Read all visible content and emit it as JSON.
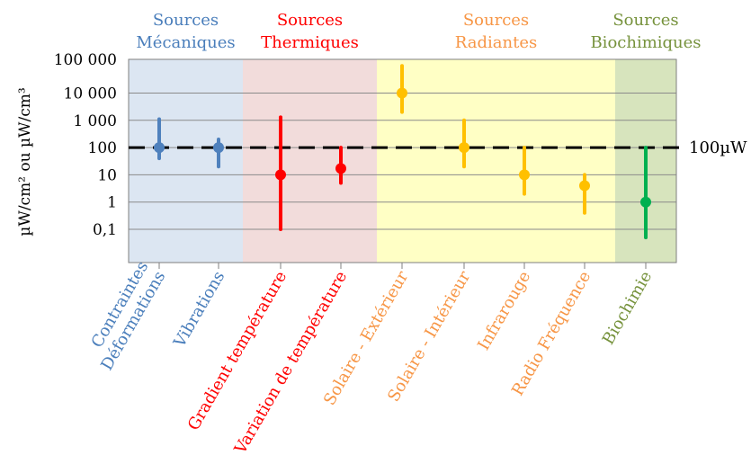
{
  "chart_data": {
    "type": "scatter",
    "ylabel": "µW/cm² ou µW/cm³",
    "yscale": "log",
    "ylim": [
      0.05,
      100000
    ],
    "y_ticks": [
      0.1,
      1,
      10,
      100,
      1000,
      10000,
      100000
    ],
    "y_tick_labels": [
      "0,1",
      "1",
      "10",
      "100",
      "1 000",
      "10 000",
      "100 000"
    ],
    "grid": true,
    "reference_line": {
      "value": 100,
      "label": "100µW",
      "style": "dashed"
    },
    "groups": [
      {
        "label": [
          "Sources",
          "Mécaniques"
        ],
        "color": "#4a7ebb",
        "background": "#dce6f2",
        "span": [
          0,
          1
        ]
      },
      {
        "label": [
          "Sources",
          "Thermiques"
        ],
        "color": "#ff0000",
        "background": "#f2dcdb",
        "span": [
          2,
          3
        ]
      },
      {
        "label": [
          "Sources",
          "Radiantes"
        ],
        "color": "#f79646",
        "background": "#ffffc5",
        "span": [
          4,
          7
        ]
      },
      {
        "label": [
          "Sources",
          "Biochimiques"
        ],
        "color": "#76923c",
        "background": "#d7e4bd",
        "span": [
          8,
          8
        ]
      }
    ],
    "categories": [
      {
        "label": [
          "Contraintes",
          "Déformations"
        ],
        "label_color": "#4a7ebb",
        "color": "#4f81bd",
        "low": 40,
        "high": 1100,
        "value": 100
      },
      {
        "label": [
          "Vibrations"
        ],
        "label_color": "#4a7ebb",
        "color": "#4f81bd",
        "low": 20,
        "high": 200,
        "value": 100
      },
      {
        "label": [
          "Gradient  température"
        ],
        "label_color": "#ff0000",
        "color": "#ff0000",
        "low": 0.1,
        "high": 1300,
        "value": 10
      },
      {
        "label": [
          "Variation de température"
        ],
        "label_color": "#ff0000",
        "color": "#ff0000",
        "low": 5,
        "high": 100,
        "value": 17
      },
      {
        "label": [
          "Solaire - Extérieur"
        ],
        "label_color": "#f79646",
        "color": "#ffc000",
        "low": 2000,
        "high": 100000,
        "value": 10000
      },
      {
        "label": [
          "Solaire - Intérieur"
        ],
        "label_color": "#f79646",
        "color": "#ffc000",
        "low": 20,
        "high": 1000,
        "value": 100
      },
      {
        "label": [
          "Infrarouge"
        ],
        "label_color": "#f79646",
        "color": "#ffc000",
        "low": 2,
        "high": 100,
        "value": 10
      },
      {
        "label": [
          "Radio Fréquence"
        ],
        "label_color": "#f79646",
        "color": "#ffc000",
        "low": 0.4,
        "high": 10,
        "value": 4
      },
      {
        "label": [
          "Biochimie"
        ],
        "label_color": "#76923c",
        "color": "#00b050",
        "low": 0.05,
        "high": 100,
        "value": 1
      }
    ]
  }
}
